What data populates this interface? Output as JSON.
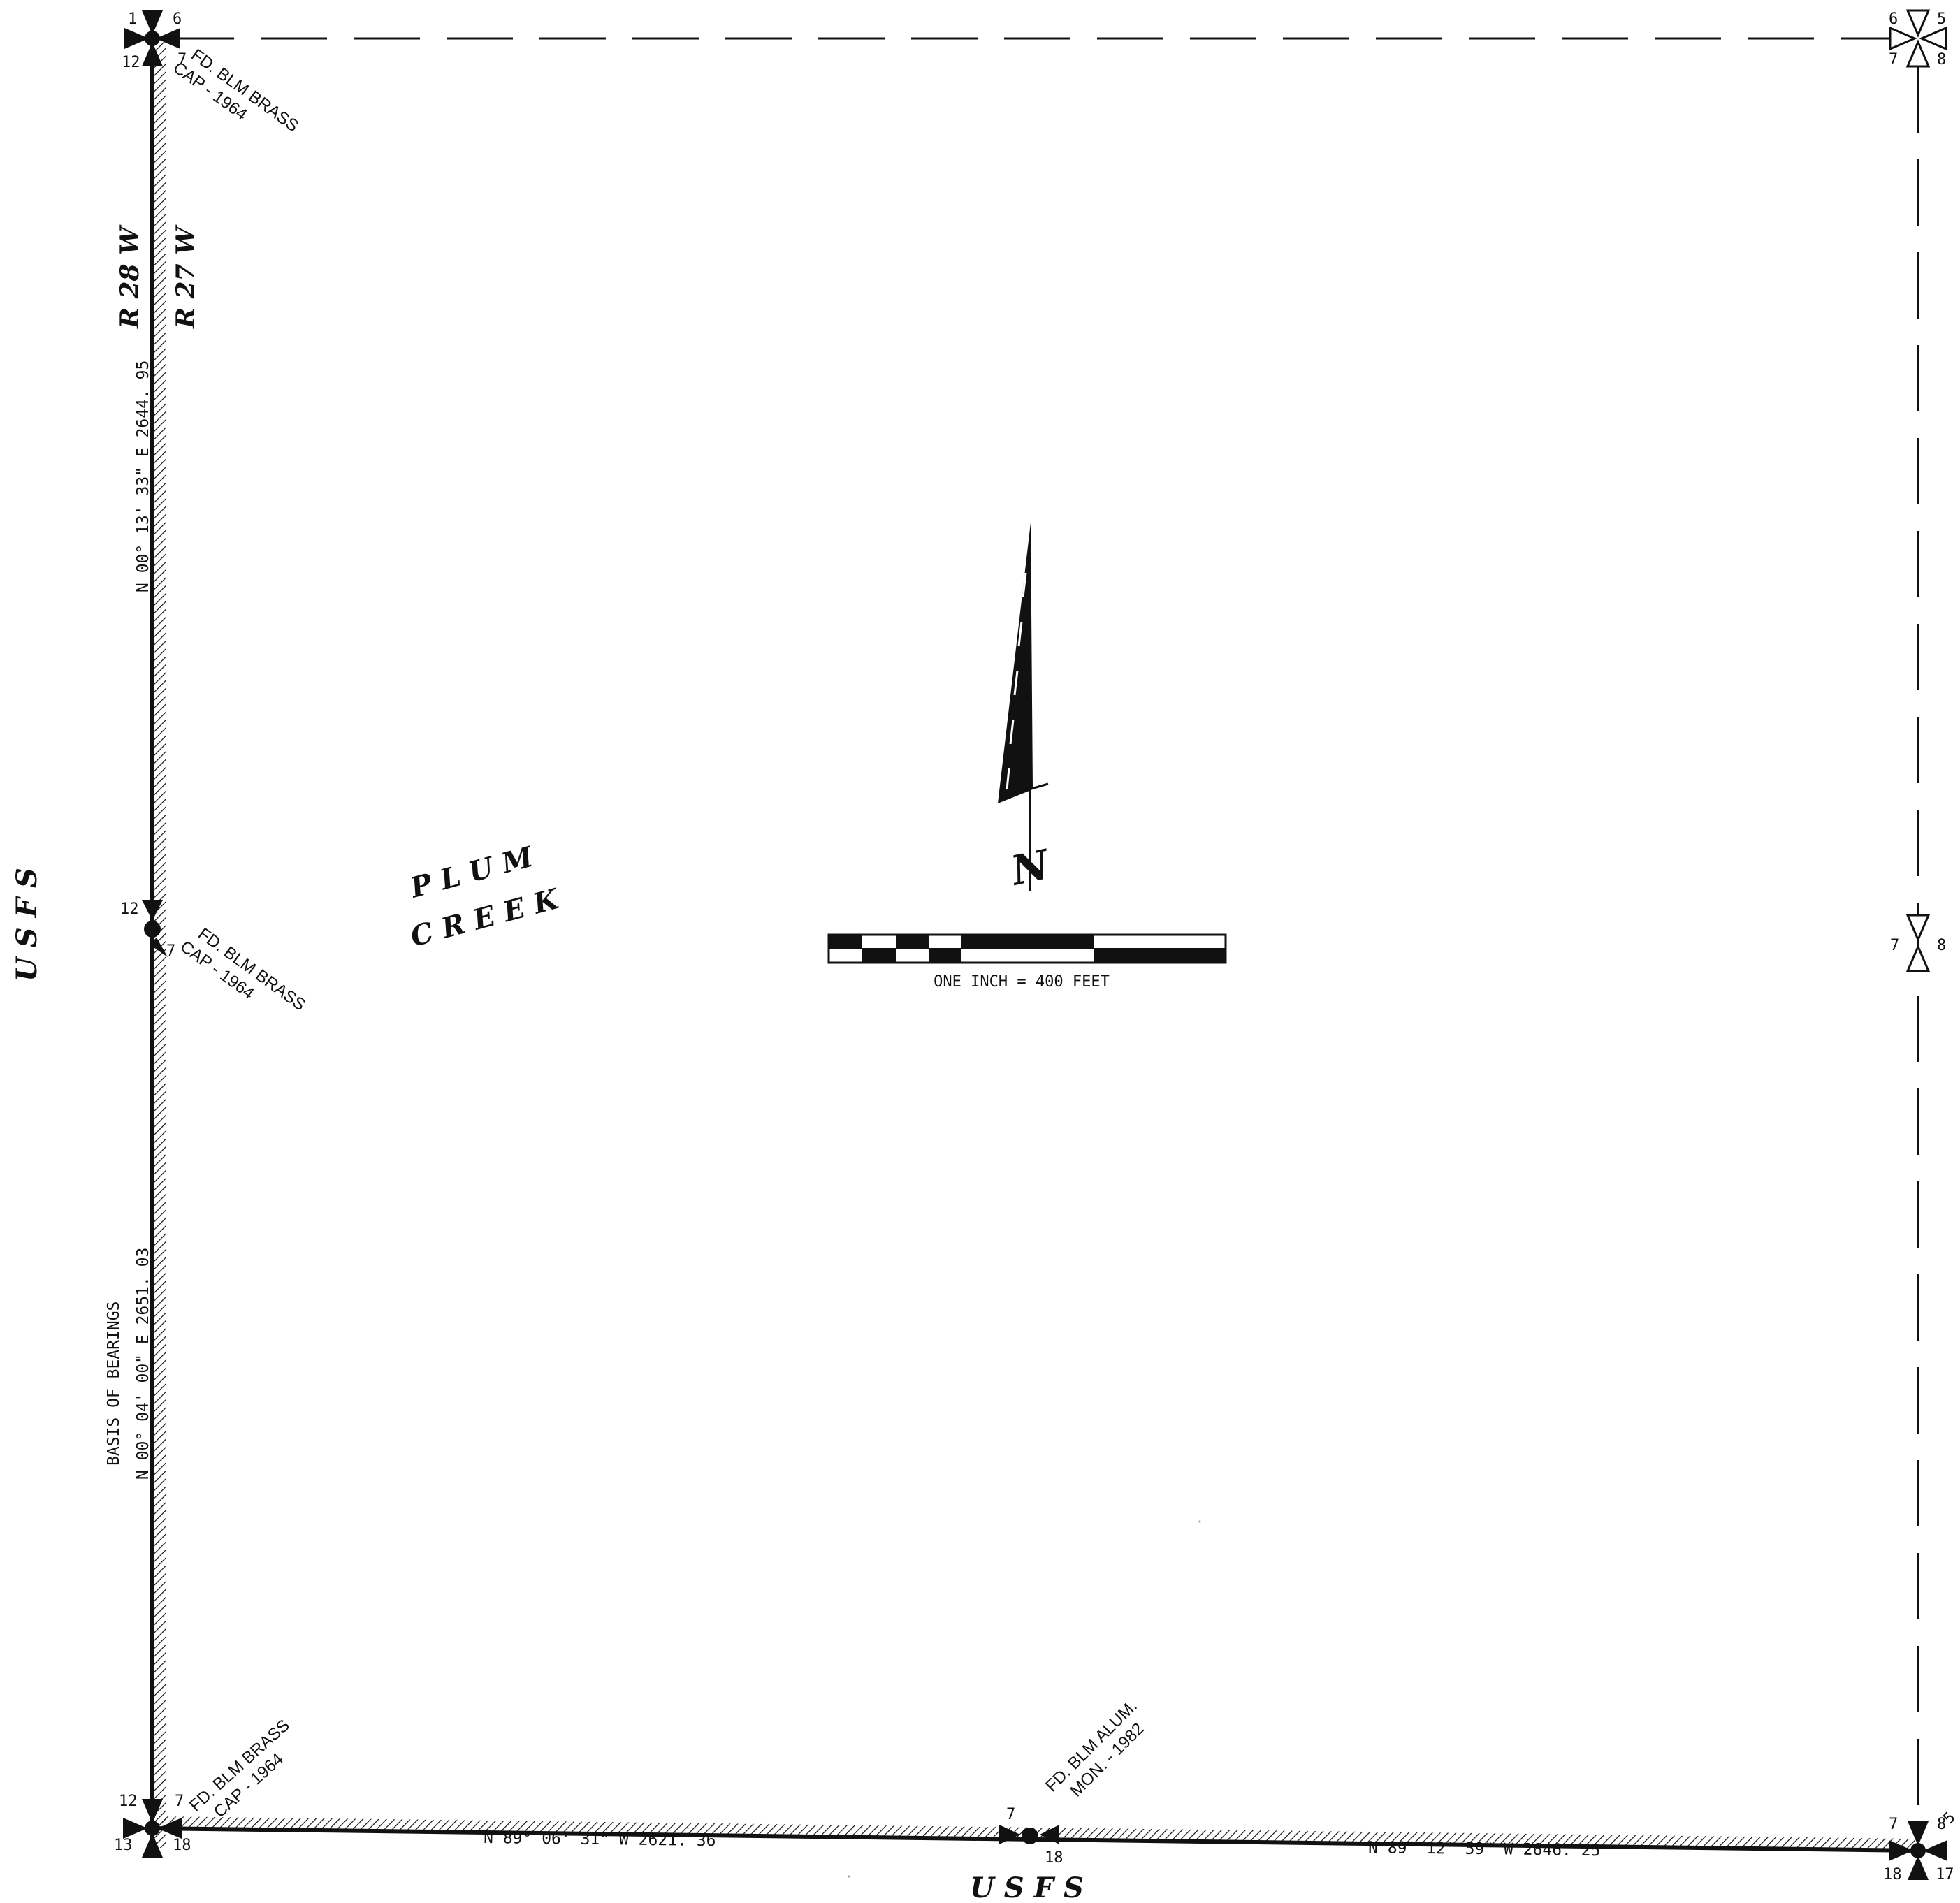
{
  "section_numbers": {
    "nw_corner": {
      "nw": "1",
      "ne": "6",
      "sw": "12",
      "se": "7"
    },
    "ne_corner": {
      "nw": "6",
      "ne": "5",
      "sw": "7",
      "se": "8"
    },
    "w_quarter": {
      "nw": "12",
      "se": "7"
    },
    "e_quarter": {
      "w": "7",
      "e": "8"
    },
    "sw_corner": {
      "nw": "12",
      "ne": "7",
      "sw": "13",
      "se": "18"
    },
    "s_quarter": {
      "nw": "7",
      "se": "18"
    },
    "se_corner": {
      "nw": "7",
      "ne": "8",
      "sw": "18",
      "se": "17",
      "far": "5"
    }
  },
  "monument_notes": {
    "nw_line1": "FD. BLM BRASS",
    "nw_line2": "CAP - 1964",
    "w_line1": "FD. BLM BRASS",
    "w_line2": "CAP - 1964",
    "sw_line1": "FD. BLM BRASS",
    "sw_line2": "CAP - 1964",
    "s_line1": "FD. BLM ALUM.",
    "s_line2": "MON. - 1982"
  },
  "ranges": {
    "west": "R 28 W",
    "east": "R 27 W"
  },
  "bearings": {
    "west_upper": "N 00° 13' 33\" E  2644. 95",
    "west_lower": "N 00° 04' 00\" E  2651. 03",
    "basis": "BASIS OF BEARINGS",
    "south_west": "N 89° 06' 31\"  W   2621. 36",
    "south_east": "N 89° 12' 59\"  W   2646. 25"
  },
  "labels": {
    "usfs_west": "U S F S",
    "usfs_south": "U S F S",
    "plum": "P L U M",
    "creek": "C R E E K"
  },
  "north_arrow": {
    "letter": "N"
  },
  "scale": {
    "text": "ONE INCH = 400 FEET"
  }
}
